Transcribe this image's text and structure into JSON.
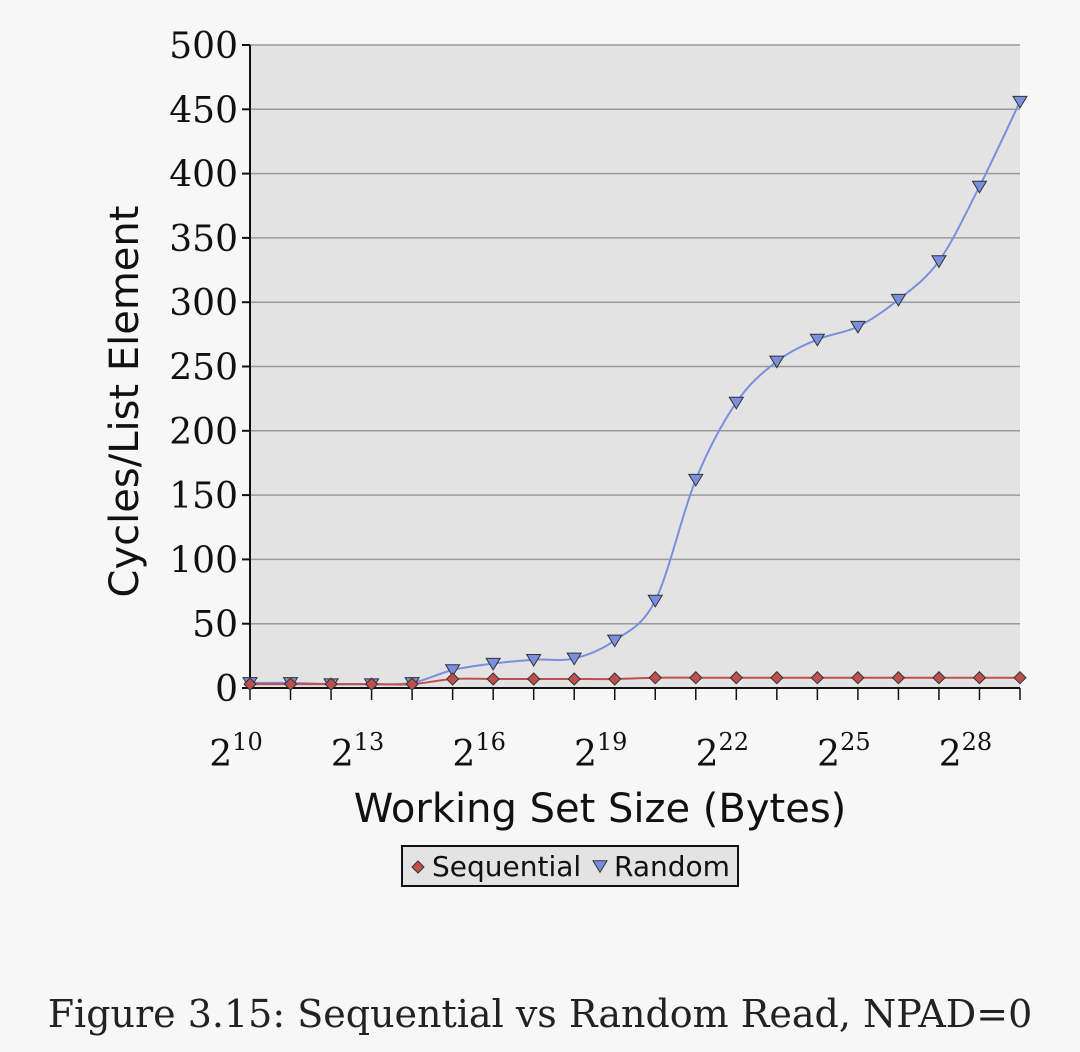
{
  "chart_data": {
    "type": "line",
    "title": "",
    "xlabel": "Working Set Size (Bytes)",
    "ylabel": "Cycles/List Element",
    "x_scale": "log2",
    "x": [
      1024,
      2048,
      4096,
      8192,
      16384,
      32768,
      65536,
      131072,
      262144,
      524288,
      1048576,
      2097152,
      4194304,
      8388608,
      16777216,
      33554432,
      67108864,
      134217728,
      268435456,
      536870912
    ],
    "xticks": [
      {
        "base": "2",
        "exp": "10"
      },
      {
        "base": "2",
        "exp": "13"
      },
      {
        "base": "2",
        "exp": "16"
      },
      {
        "base": "2",
        "exp": "19"
      },
      {
        "base": "2",
        "exp": "22"
      },
      {
        "base": "2",
        "exp": "25"
      },
      {
        "base": "2",
        "exp": "28"
      }
    ],
    "ylim": [
      0,
      500
    ],
    "yticks": [
      0,
      50,
      100,
      150,
      200,
      250,
      300,
      350,
      400,
      450,
      500
    ],
    "grid": "horizontal",
    "legend": "bottom-center",
    "series": [
      {
        "name": "Sequential",
        "marker": "diamond",
        "color": "#c0504d",
        "values": [
          3,
          3,
          3,
          3,
          3,
          7,
          7,
          7,
          7,
          7,
          8,
          8,
          8,
          8,
          8,
          8,
          8,
          8,
          8,
          8
        ]
      },
      {
        "name": "Random",
        "marker": "triangle-down",
        "color": "#7a8fe0",
        "values": [
          4,
          4,
          3,
          3,
          4,
          14,
          19,
          22,
          23,
          37,
          68,
          162,
          222,
          254,
          271,
          281,
          302,
          332,
          390,
          456
        ]
      }
    ]
  },
  "caption": "Figure 3.15: Sequential vs Random Read, NPAD=0",
  "colors": {
    "plot_background": "#e3e3e3",
    "page_background": "#f7f7f7"
  }
}
